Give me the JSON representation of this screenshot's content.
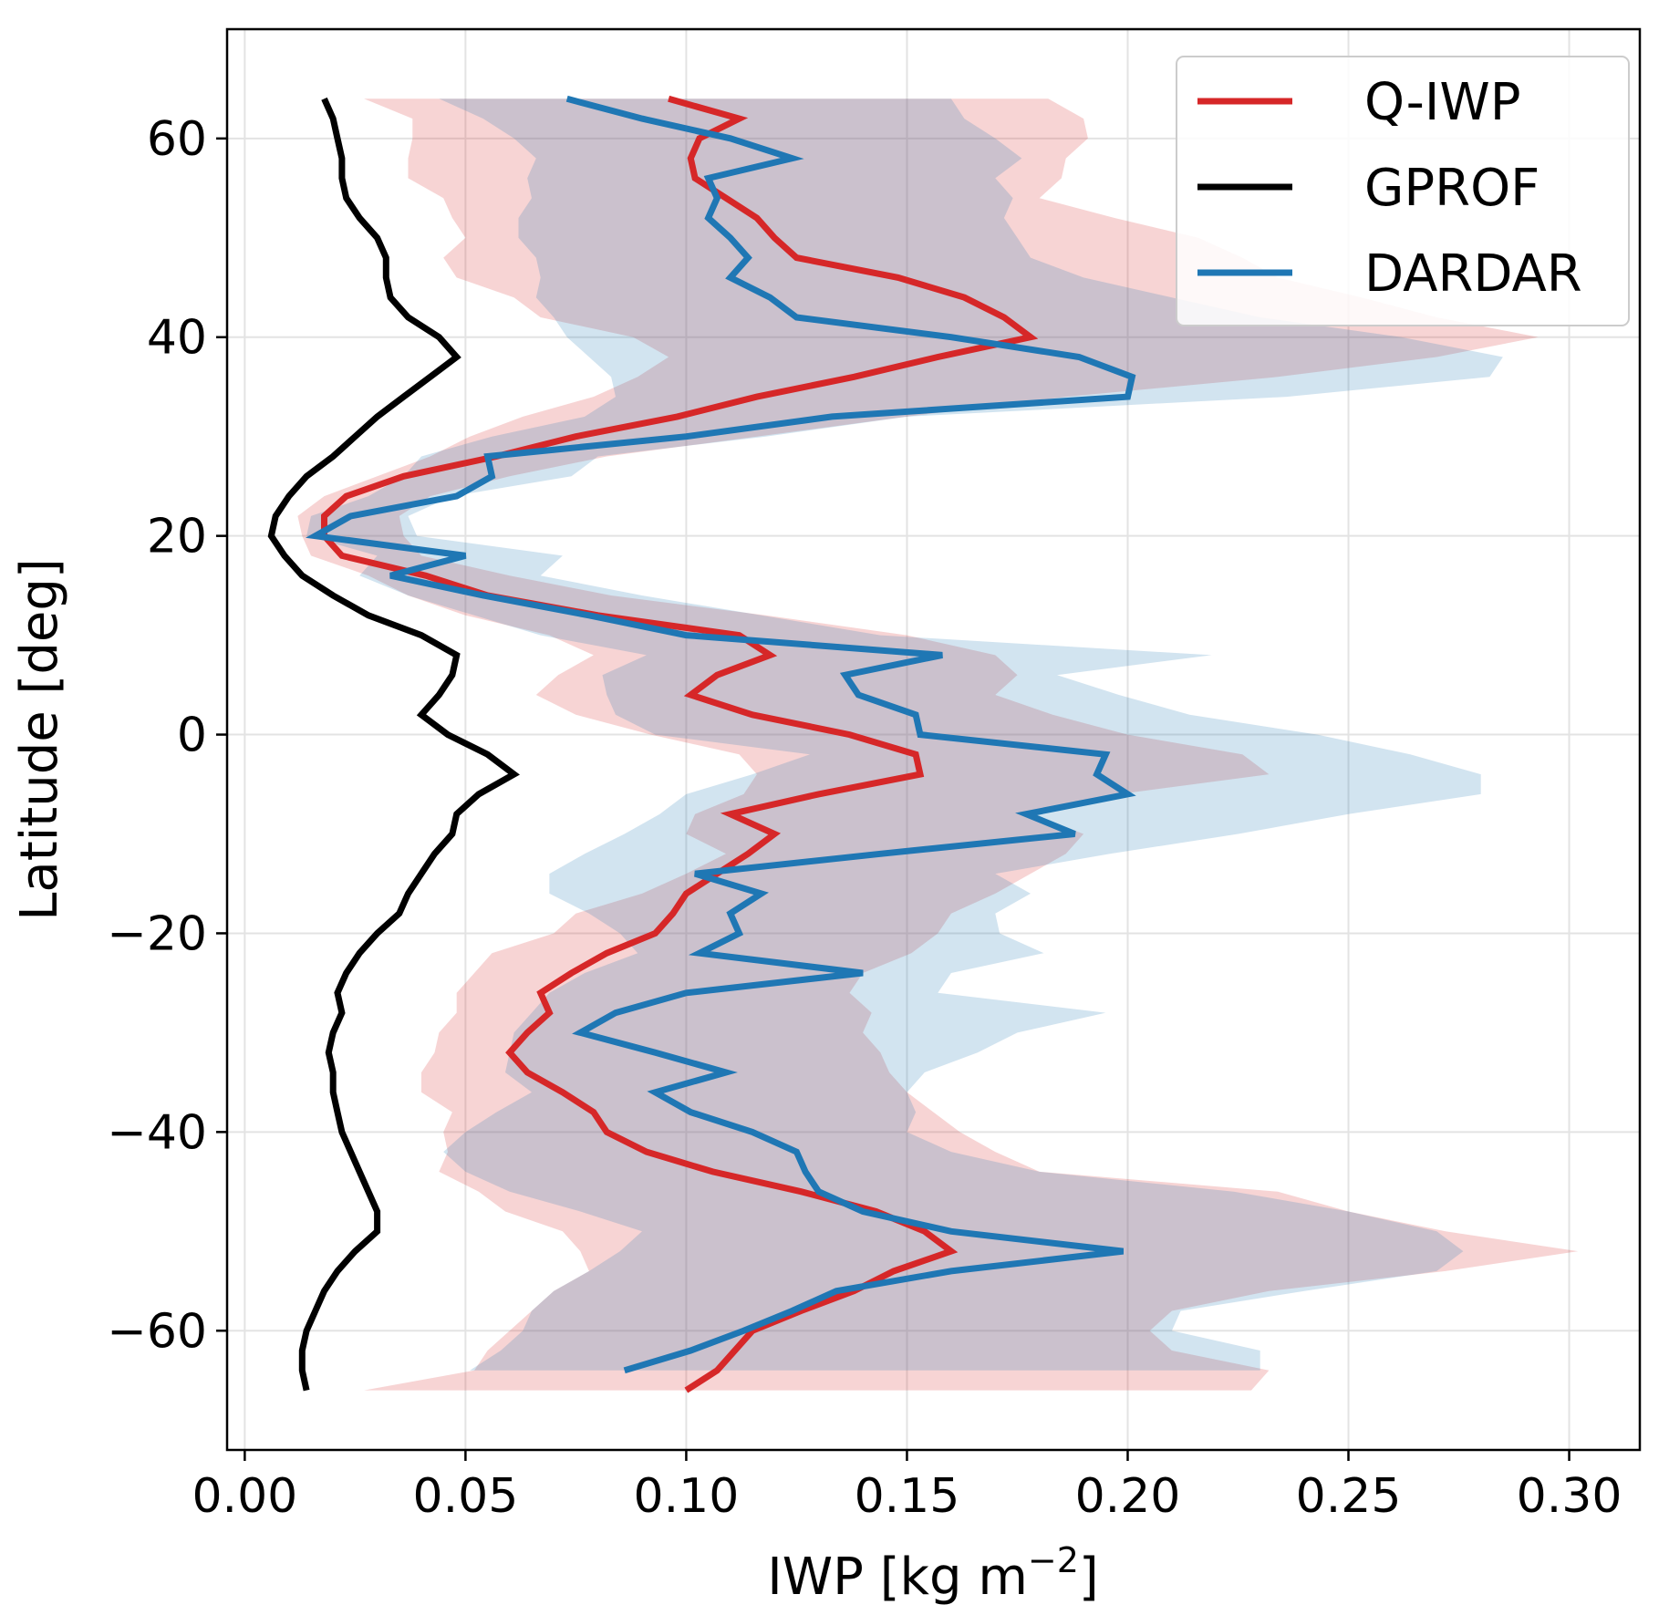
{
  "chart_data": {
    "type": "line",
    "orientation": "horizontal-profile",
    "xlabel": "IWP [kg m",
    "xlabel_exponent": "−2",
    "xlabel_suffix": "]",
    "ylabel": "Latitude [deg]",
    "xlim": [
      -0.004,
      0.316
    ],
    "ylim": [
      -72,
      71
    ],
    "xticks": [
      0.0,
      0.05,
      0.1,
      0.15,
      0.2,
      0.25,
      0.3
    ],
    "xtick_labels": [
      "0.00",
      "0.05",
      "0.10",
      "0.15",
      "0.20",
      "0.25",
      "0.30"
    ],
    "yticks": [
      -60,
      -40,
      -20,
      0,
      20,
      40,
      60
    ],
    "ytick_labels": [
      "−60",
      "−40",
      "−20",
      "0",
      "20",
      "40",
      "60"
    ],
    "grid": true,
    "legend_position": "top-right",
    "colors": {
      "qiwp": "#d62728",
      "gprof": "#000000",
      "dardar": "#1f77b4"
    },
    "series": [
      {
        "key": "qiwp",
        "name": "Q-IWP",
        "color": "#d62728",
        "band_opacity": 0.2,
        "latitude": [
          -66,
          -64,
          -62,
          -60,
          -58,
          -56,
          -54,
          -52,
          -50,
          -48,
          -46,
          -44,
          -42,
          -40,
          -38,
          -36,
          -34,
          -32,
          -30,
          -28,
          -26,
          -24,
          -22,
          -20,
          -18,
          -16,
          -14,
          -12,
          -10,
          -8,
          -6,
          -4,
          -2,
          0,
          2,
          4,
          6,
          8,
          10,
          12,
          14,
          16,
          18,
          20,
          22,
          24,
          26,
          28,
          30,
          32,
          34,
          36,
          38,
          40,
          42,
          44,
          46,
          48,
          50,
          52,
          54,
          56,
          58,
          60,
          62,
          64
        ],
        "iwp": [
          0.1,
          0.107,
          0.111,
          0.115,
          0.126,
          0.138,
          0.147,
          0.16,
          0.154,
          0.143,
          0.126,
          0.106,
          0.091,
          0.082,
          0.079,
          0.072,
          0.064,
          0.06,
          0.064,
          0.069,
          0.067,
          0.074,
          0.082,
          0.093,
          0.097,
          0.1,
          0.107,
          0.114,
          0.12,
          0.11,
          0.13,
          0.153,
          0.152,
          0.137,
          0.115,
          0.101,
          0.107,
          0.119,
          0.112,
          0.08,
          0.055,
          0.041,
          0.022,
          0.018,
          0.018,
          0.023,
          0.036,
          0.057,
          0.075,
          0.098,
          0.116,
          0.138,
          0.157,
          0.178,
          0.172,
          0.163,
          0.148,
          0.125,
          0.12,
          0.116,
          0.109,
          0.102,
          0.101,
          0.103,
          0.112,
          0.096
        ],
        "p_low": [
          0.027,
          0.052,
          0.055,
          0.06,
          0.065,
          0.07,
          0.078,
          0.076,
          0.072,
          0.059,
          0.053,
          0.044,
          0.046,
          0.045,
          0.047,
          0.04,
          0.04,
          0.043,
          0.044,
          0.048,
          0.048,
          0.052,
          0.056,
          0.07,
          0.075,
          0.09,
          0.1,
          0.109,
          0.1,
          0.102,
          0.113,
          0.116,
          0.112,
          0.092,
          0.075,
          0.066,
          0.071,
          0.079,
          0.069,
          0.05,
          0.037,
          0.028,
          0.015,
          0.013,
          0.012,
          0.018,
          0.03,
          0.042,
          0.051,
          0.063,
          0.079,
          0.089,
          0.096,
          0.088,
          0.067,
          0.061,
          0.048,
          0.045,
          0.05,
          0.047,
          0.045,
          0.037,
          0.037,
          0.038,
          0.038,
          0.027
        ],
        "p_high": [
          0.228,
          0.232,
          0.21,
          0.205,
          0.21,
          0.232,
          0.272,
          0.302,
          0.272,
          0.25,
          0.234,
          0.18,
          0.17,
          0.162,
          0.156,
          0.15,
          0.146,
          0.144,
          0.14,
          0.142,
          0.137,
          0.14,
          0.151,
          0.157,
          0.16,
          0.17,
          0.178,
          0.186,
          0.19,
          0.178,
          0.198,
          0.232,
          0.226,
          0.2,
          0.183,
          0.17,
          0.175,
          0.17,
          0.15,
          0.118,
          0.083,
          0.06,
          0.04,
          0.036,
          0.035,
          0.042,
          0.06,
          0.082,
          0.116,
          0.15,
          0.186,
          0.234,
          0.27,
          0.293,
          0.27,
          0.253,
          0.234,
          0.226,
          0.216,
          0.197,
          0.18,
          0.185,
          0.186,
          0.191,
          0.19,
          0.182
        ]
      },
      {
        "key": "gprof",
        "name": "GPROF",
        "color": "#000000",
        "latitude": [
          -66,
          -64,
          -62,
          -60,
          -58,
          -56,
          -54,
          -52,
          -50,
          -48,
          -46,
          -44,
          -42,
          -40,
          -38,
          -36,
          -34,
          -32,
          -30,
          -28,
          -26,
          -24,
          -22,
          -20,
          -18,
          -16,
          -14,
          -12,
          -10,
          -8,
          -6,
          -4,
          -2,
          0,
          2,
          4,
          6,
          8,
          10,
          12,
          14,
          16,
          18,
          20,
          22,
          24,
          26,
          28,
          30,
          32,
          34,
          36,
          38,
          40,
          42,
          44,
          46,
          48,
          50,
          52,
          54,
          56,
          58,
          60,
          62,
          64
        ],
        "iwp": [
          0.014,
          0.013,
          0.013,
          0.014,
          0.016,
          0.018,
          0.021,
          0.025,
          0.03,
          0.03,
          0.028,
          0.026,
          0.024,
          0.022,
          0.021,
          0.02,
          0.02,
          0.019,
          0.02,
          0.022,
          0.021,
          0.023,
          0.026,
          0.03,
          0.035,
          0.037,
          0.04,
          0.043,
          0.047,
          0.048,
          0.053,
          0.061,
          0.055,
          0.046,
          0.04,
          0.044,
          0.047,
          0.048,
          0.04,
          0.028,
          0.02,
          0.013,
          0.009,
          0.006,
          0.007,
          0.01,
          0.014,
          0.02,
          0.025,
          0.03,
          0.036,
          0.042,
          0.048,
          0.044,
          0.037,
          0.033,
          0.032,
          0.032,
          0.03,
          0.026,
          0.023,
          0.022,
          0.022,
          0.021,
          0.02,
          0.018
        ]
      },
      {
        "key": "dardar",
        "name": "DARDAR",
        "color": "#1f77b4",
        "band_opacity": 0.2,
        "latitude": [
          -64,
          -62,
          -60,
          -58,
          -56,
          -54,
          -52,
          -50,
          -48,
          -46,
          -44,
          -42,
          -40,
          -38,
          -36,
          -34,
          -32,
          -30,
          -28,
          -26,
          -24,
          -22,
          -20,
          -18,
          -16,
          -14,
          -12,
          -10,
          -8,
          -6,
          -4,
          -2,
          0,
          2,
          4,
          6,
          8,
          10,
          12,
          14,
          16,
          18,
          20,
          22,
          24,
          26,
          28,
          30,
          32,
          34,
          36,
          38,
          40,
          42,
          44,
          46,
          48,
          50,
          52,
          54,
          56,
          58,
          60,
          62,
          64
        ],
        "iwp": [
          0.086,
          0.101,
          0.113,
          0.124,
          0.134,
          0.16,
          0.199,
          0.16,
          0.14,
          0.13,
          0.127,
          0.125,
          0.115,
          0.101,
          0.093,
          0.109,
          0.093,
          0.076,
          0.084,
          0.1,
          0.14,
          0.103,
          0.112,
          0.11,
          0.117,
          0.102,
          0.144,
          0.188,
          0.177,
          0.2,
          0.193,
          0.195,
          0.153,
          0.152,
          0.139,
          0.136,
          0.158,
          0.1,
          0.078,
          0.054,
          0.033,
          0.05,
          0.016,
          0.024,
          0.048,
          0.056,
          0.055,
          0.1,
          0.133,
          0.2,
          0.201,
          0.189,
          0.16,
          0.125,
          0.119,
          0.11,
          0.114,
          0.11,
          0.105,
          0.107,
          0.105,
          0.124,
          0.11,
          0.09,
          0.073
        ],
        "p_low": [
          0.051,
          0.058,
          0.063,
          0.065,
          0.07,
          0.078,
          0.085,
          0.09,
          0.076,
          0.06,
          0.05,
          0.045,
          0.05,
          0.057,
          0.065,
          0.059,
          0.06,
          0.061,
          0.065,
          0.069,
          0.077,
          0.089,
          0.085,
          0.078,
          0.069,
          0.069,
          0.077,
          0.086,
          0.094,
          0.1,
          0.115,
          0.128,
          0.093,
          0.084,
          0.082,
          0.081,
          0.091,
          0.067,
          0.052,
          0.037,
          0.026,
          0.03,
          0.014,
          0.015,
          0.028,
          0.036,
          0.04,
          0.056,
          0.077,
          0.084,
          0.083,
          0.078,
          0.073,
          0.07,
          0.066,
          0.067,
          0.066,
          0.062,
          0.062,
          0.065,
          0.064,
          0.066,
          0.061,
          0.054,
          0.044
        ],
        "p_high": [
          0.23,
          0.23,
          0.21,
          0.212,
          0.24,
          0.27,
          0.276,
          0.27,
          0.25,
          0.224,
          0.18,
          0.16,
          0.15,
          0.152,
          0.15,
          0.154,
          0.166,
          0.175,
          0.195,
          0.157,
          0.16,
          0.181,
          0.171,
          0.17,
          0.178,
          0.17,
          0.196,
          0.225,
          0.25,
          0.28,
          0.28,
          0.264,
          0.243,
          0.214,
          0.198,
          0.184,
          0.219,
          0.144,
          0.117,
          0.09,
          0.067,
          0.072,
          0.039,
          0.037,
          0.047,
          0.074,
          0.08,
          0.118,
          0.15,
          0.236,
          0.282,
          0.285,
          0.262,
          0.23,
          0.21,
          0.19,
          0.178,
          0.175,
          0.172,
          0.174,
          0.17,
          0.176,
          0.17,
          0.163,
          0.16
        ]
      }
    ]
  }
}
